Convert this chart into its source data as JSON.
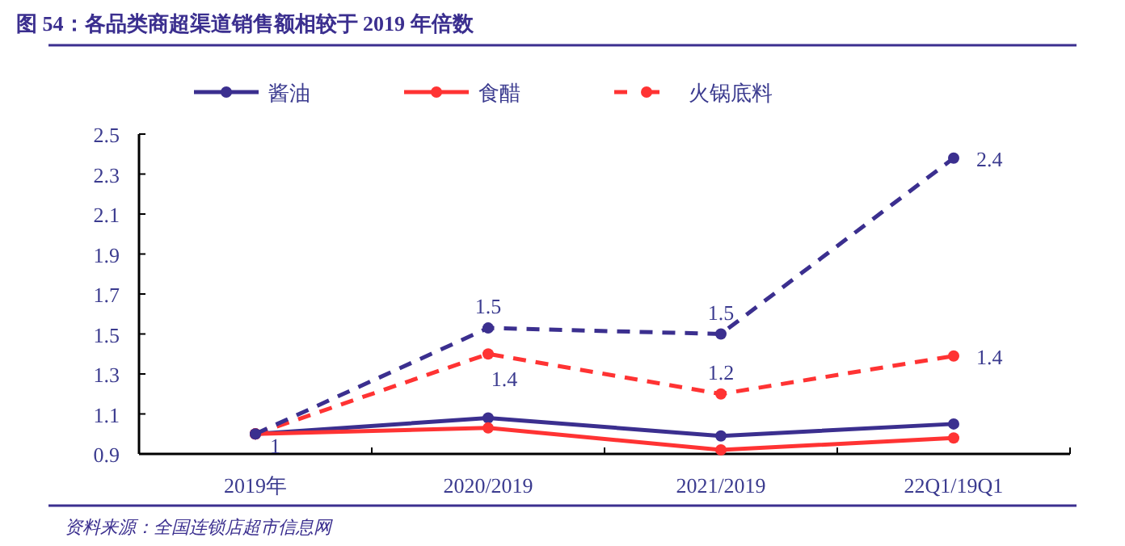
{
  "chart_data": {
    "type": "line",
    "title": "图 54：各品类商超渠道销售额相较于 2019 年倍数",
    "categories": [
      "2019年",
      "2020/2019",
      "2021/2019",
      "22Q1/19Q1"
    ],
    "series": [
      {
        "name": "酱油",
        "color": "#3b2f8f",
        "values": [
          1.0,
          1.08,
          0.99,
          1.05
        ],
        "line_style": "solid"
      },
      {
        "name": "食醋",
        "color": "#ff3333",
        "values": [
          1.0,
          1.03,
          0.92,
          0.98
        ],
        "line_style": "solid"
      },
      {
        "name": "火锅底料",
        "color": "#ff3333",
        "values": [
          1.0,
          1.4,
          1.2,
          1.39
        ],
        "line_style": "dashed",
        "value_labels": [
          "1",
          "1.4",
          "1.2",
          "1.4"
        ]
      },
      {
        "color": "#3b2f8f",
        "values": [
          1.0,
          1.53,
          1.5,
          2.38
        ],
        "line_style": "dashed",
        "value_labels": [
          null,
          "1.5",
          "1.5",
          "2.4"
        ]
      }
    ],
    "ylim": [
      0.9,
      2.5
    ],
    "yticks": [
      0.9,
      1.1,
      1.3,
      1.5,
      1.7,
      1.9,
      2.1,
      2.3,
      2.5
    ],
    "marker": "circle",
    "legend": "top",
    "grid": false,
    "annotations": [
      "资料来源：全国连锁店超市信息网"
    ]
  }
}
